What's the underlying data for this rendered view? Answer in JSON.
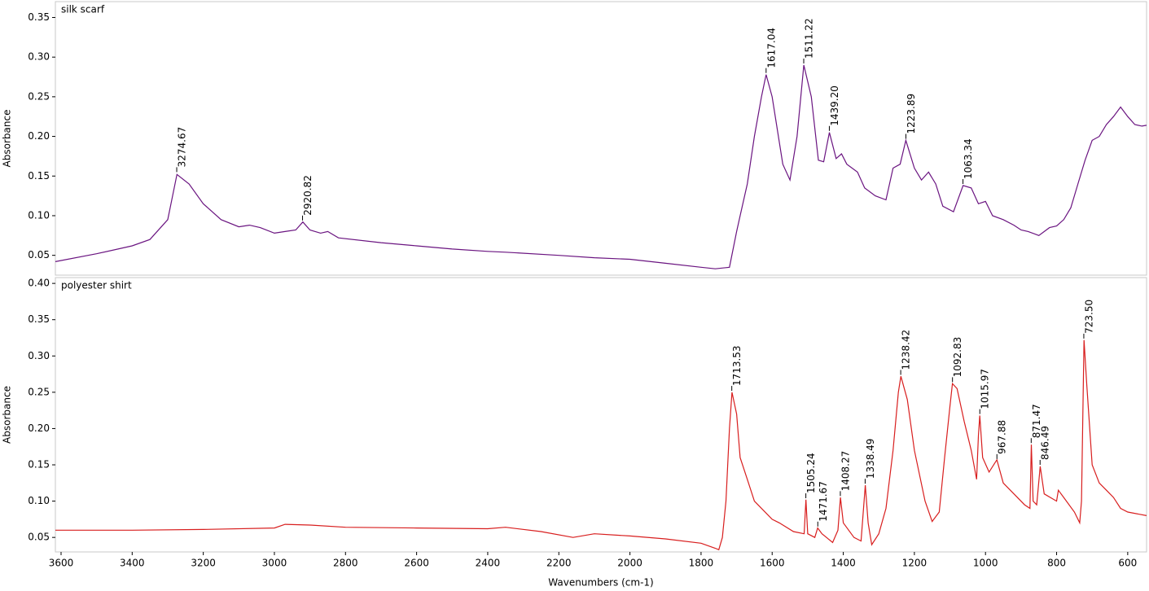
{
  "chart_data": [
    {
      "type": "line",
      "title": "silk scarf",
      "ylabel": "Absorbance",
      "xlim": [
        3616,
        547
      ],
      "ylim": [
        0.025,
        0.37
      ],
      "yticks": [
        0.05,
        {
          "value": 0.1,
          "label": "0.10"
        },
        0.15,
        {
          "value": 0.2,
          "label": "0.20"
        },
        0.25,
        {
          "value": 0.3,
          "label": "0.30"
        },
        0.35
      ],
      "x": [
        3616,
        3500,
        3400,
        3350,
        3300,
        3274,
        3240,
        3200,
        3150,
        3100,
        3070,
        3040,
        3000,
        2970,
        2940,
        2920,
        2900,
        2870,
        2850,
        2820,
        2700,
        2600,
        2500,
        2400,
        2350,
        2200,
        2100,
        2000,
        1900,
        1800,
        1760,
        1720,
        1700,
        1690,
        1670,
        1650,
        1630,
        1617,
        1600,
        1570,
        1550,
        1530,
        1511,
        1490,
        1470,
        1455,
        1439,
        1420,
        1405,
        1390,
        1360,
        1340,
        1310,
        1280,
        1260,
        1240,
        1224,
        1200,
        1180,
        1160,
        1140,
        1120,
        1090,
        1063,
        1040,
        1020,
        1000,
        980,
        950,
        920,
        900,
        880,
        850,
        820,
        800,
        780,
        760,
        740,
        720,
        700,
        680,
        660,
        640,
        620,
        600,
        580,
        560,
        547
      ],
      "series": [
        {
          "color": "#6a1480",
          "values": [
            0.042,
            0.052,
            0.062,
            0.07,
            0.095,
            0.152,
            0.14,
            0.115,
            0.095,
            0.086,
            0.088,
            0.085,
            0.078,
            0.08,
            0.082,
            0.092,
            0.082,
            0.078,
            0.08,
            0.072,
            0.066,
            0.062,
            0.058,
            0.055,
            0.054,
            0.05,
            0.047,
            0.045,
            0.04,
            0.035,
            0.033,
            0.035,
            0.08,
            0.1,
            0.14,
            0.2,
            0.25,
            0.278,
            0.25,
            0.165,
            0.145,
            0.2,
            0.29,
            0.25,
            0.17,
            0.168,
            0.205,
            0.172,
            0.178,
            0.165,
            0.155,
            0.135,
            0.125,
            0.12,
            0.16,
            0.165,
            0.195,
            0.16,
            0.145,
            0.155,
            0.14,
            0.112,
            0.105,
            0.138,
            0.135,
            0.115,
            0.118,
            0.1,
            0.095,
            0.088,
            0.082,
            0.08,
            0.075,
            0.085,
            0.087,
            0.095,
            0.11,
            0.14,
            0.17,
            0.195,
            0.2,
            0.215,
            0.225,
            0.237,
            0.225,
            0.215,
            0.213,
            0.214
          ]
        }
      ],
      "peaks": {
        "x": [
          3274.67,
          2920.82,
          1617.04,
          1511.22,
          1439.2,
          1223.89,
          1063.34
        ],
        "y": [
          0.155,
          0.094,
          0.28,
          0.292,
          0.207,
          0.197,
          0.14
        ],
        "value_labels": [
          "3274.67",
          "2920.82",
          "1617.04",
          "1511.22",
          "1439.20",
          "1223.89",
          "1063.34"
        ]
      }
    },
    {
      "type": "line",
      "title": "polyester shirt",
      "ylabel": "Absorbance",
      "xlabel": "Wavenumbers (cm-1)",
      "xlim": [
        3616,
        547
      ],
      "ylim": [
        0.03,
        0.408
      ],
      "xticks": [
        3600,
        3400,
        3200,
        3000,
        2800,
        2600,
        2400,
        2200,
        2000,
        1800,
        1600,
        1400,
        1200,
        1000,
        800,
        600
      ],
      "yticks": [
        0.05,
        {
          "value": 0.1,
          "label": "0.10"
        },
        0.15,
        {
          "value": 0.2,
          "label": "0.20"
        },
        0.25,
        {
          "value": 0.3,
          "label": "0.30"
        },
        0.35,
        {
          "value": 0.4,
          "label": "0.40"
        }
      ],
      "x": [
        3616,
        3400,
        3200,
        3000,
        2970,
        2900,
        2800,
        2600,
        2400,
        2350,
        2250,
        2160,
        2100,
        2000,
        1900,
        1800,
        1760,
        1750,
        1740,
        1730,
        1720,
        1713,
        1700,
        1690,
        1670,
        1650,
        1600,
        1580,
        1540,
        1510,
        1505,
        1500,
        1480,
        1472,
        1460,
        1430,
        1415,
        1408,
        1400,
        1370,
        1350,
        1338,
        1330,
        1320,
        1300,
        1280,
        1260,
        1245,
        1238,
        1220,
        1200,
        1170,
        1150,
        1130,
        1115,
        1100,
        1093,
        1080,
        1060,
        1040,
        1025,
        1020,
        1016,
        1008,
        990,
        968,
        950,
        920,
        890,
        875,
        871,
        866,
        856,
        846,
        835,
        800,
        795,
        780,
        750,
        735,
        730,
        723,
        715,
        700,
        680,
        660,
        640,
        620,
        600,
        547
      ],
      "series": [
        {
          "color": "#d81e1e",
          "values": [
            0.06,
            0.06,
            0.061,
            0.063,
            0.068,
            0.067,
            0.064,
            0.063,
            0.062,
            0.064,
            0.058,
            0.05,
            0.055,
            0.052,
            0.048,
            0.042,
            0.035,
            0.033,
            0.05,
            0.1,
            0.2,
            0.25,
            0.22,
            0.16,
            0.13,
            0.1,
            0.075,
            0.07,
            0.058,
            0.055,
            0.102,
            0.055,
            0.05,
            0.063,
            0.055,
            0.043,
            0.06,
            0.105,
            0.07,
            0.05,
            0.045,
            0.122,
            0.07,
            0.04,
            0.055,
            0.09,
            0.17,
            0.25,
            0.272,
            0.24,
            0.17,
            0.1,
            0.072,
            0.085,
            0.16,
            0.23,
            0.262,
            0.255,
            0.21,
            0.17,
            0.13,
            0.19,
            0.218,
            0.16,
            0.14,
            0.157,
            0.125,
            0.11,
            0.095,
            0.09,
            0.178,
            0.1,
            0.095,
            0.148,
            0.11,
            0.1,
            0.115,
            0.105,
            0.085,
            0.07,
            0.1,
            0.322,
            0.26,
            0.15,
            0.125,
            0.115,
            0.105,
            0.09,
            0.085,
            0.08
          ]
        }
      ],
      "peaks": {
        "x": [
          1713.53,
          1505.24,
          1471.67,
          1408.27,
          1338.49,
          1238.42,
          1092.83,
          1015.97,
          967.88,
          871.47,
          846.49,
          723.5
        ],
        "y": [
          0.252,
          0.104,
          0.065,
          0.107,
          0.124,
          0.274,
          0.264,
          0.22,
          0.158,
          0.18,
          0.15,
          0.324
        ],
        "value_labels": [
          "1713.53",
          "1505.24",
          "1471.67",
          "1408.27",
          "1338.49",
          "1238.42",
          "1092.83",
          "1015.97",
          "967.88",
          "871.47",
          "846.49",
          "723.50"
        ]
      }
    }
  ]
}
